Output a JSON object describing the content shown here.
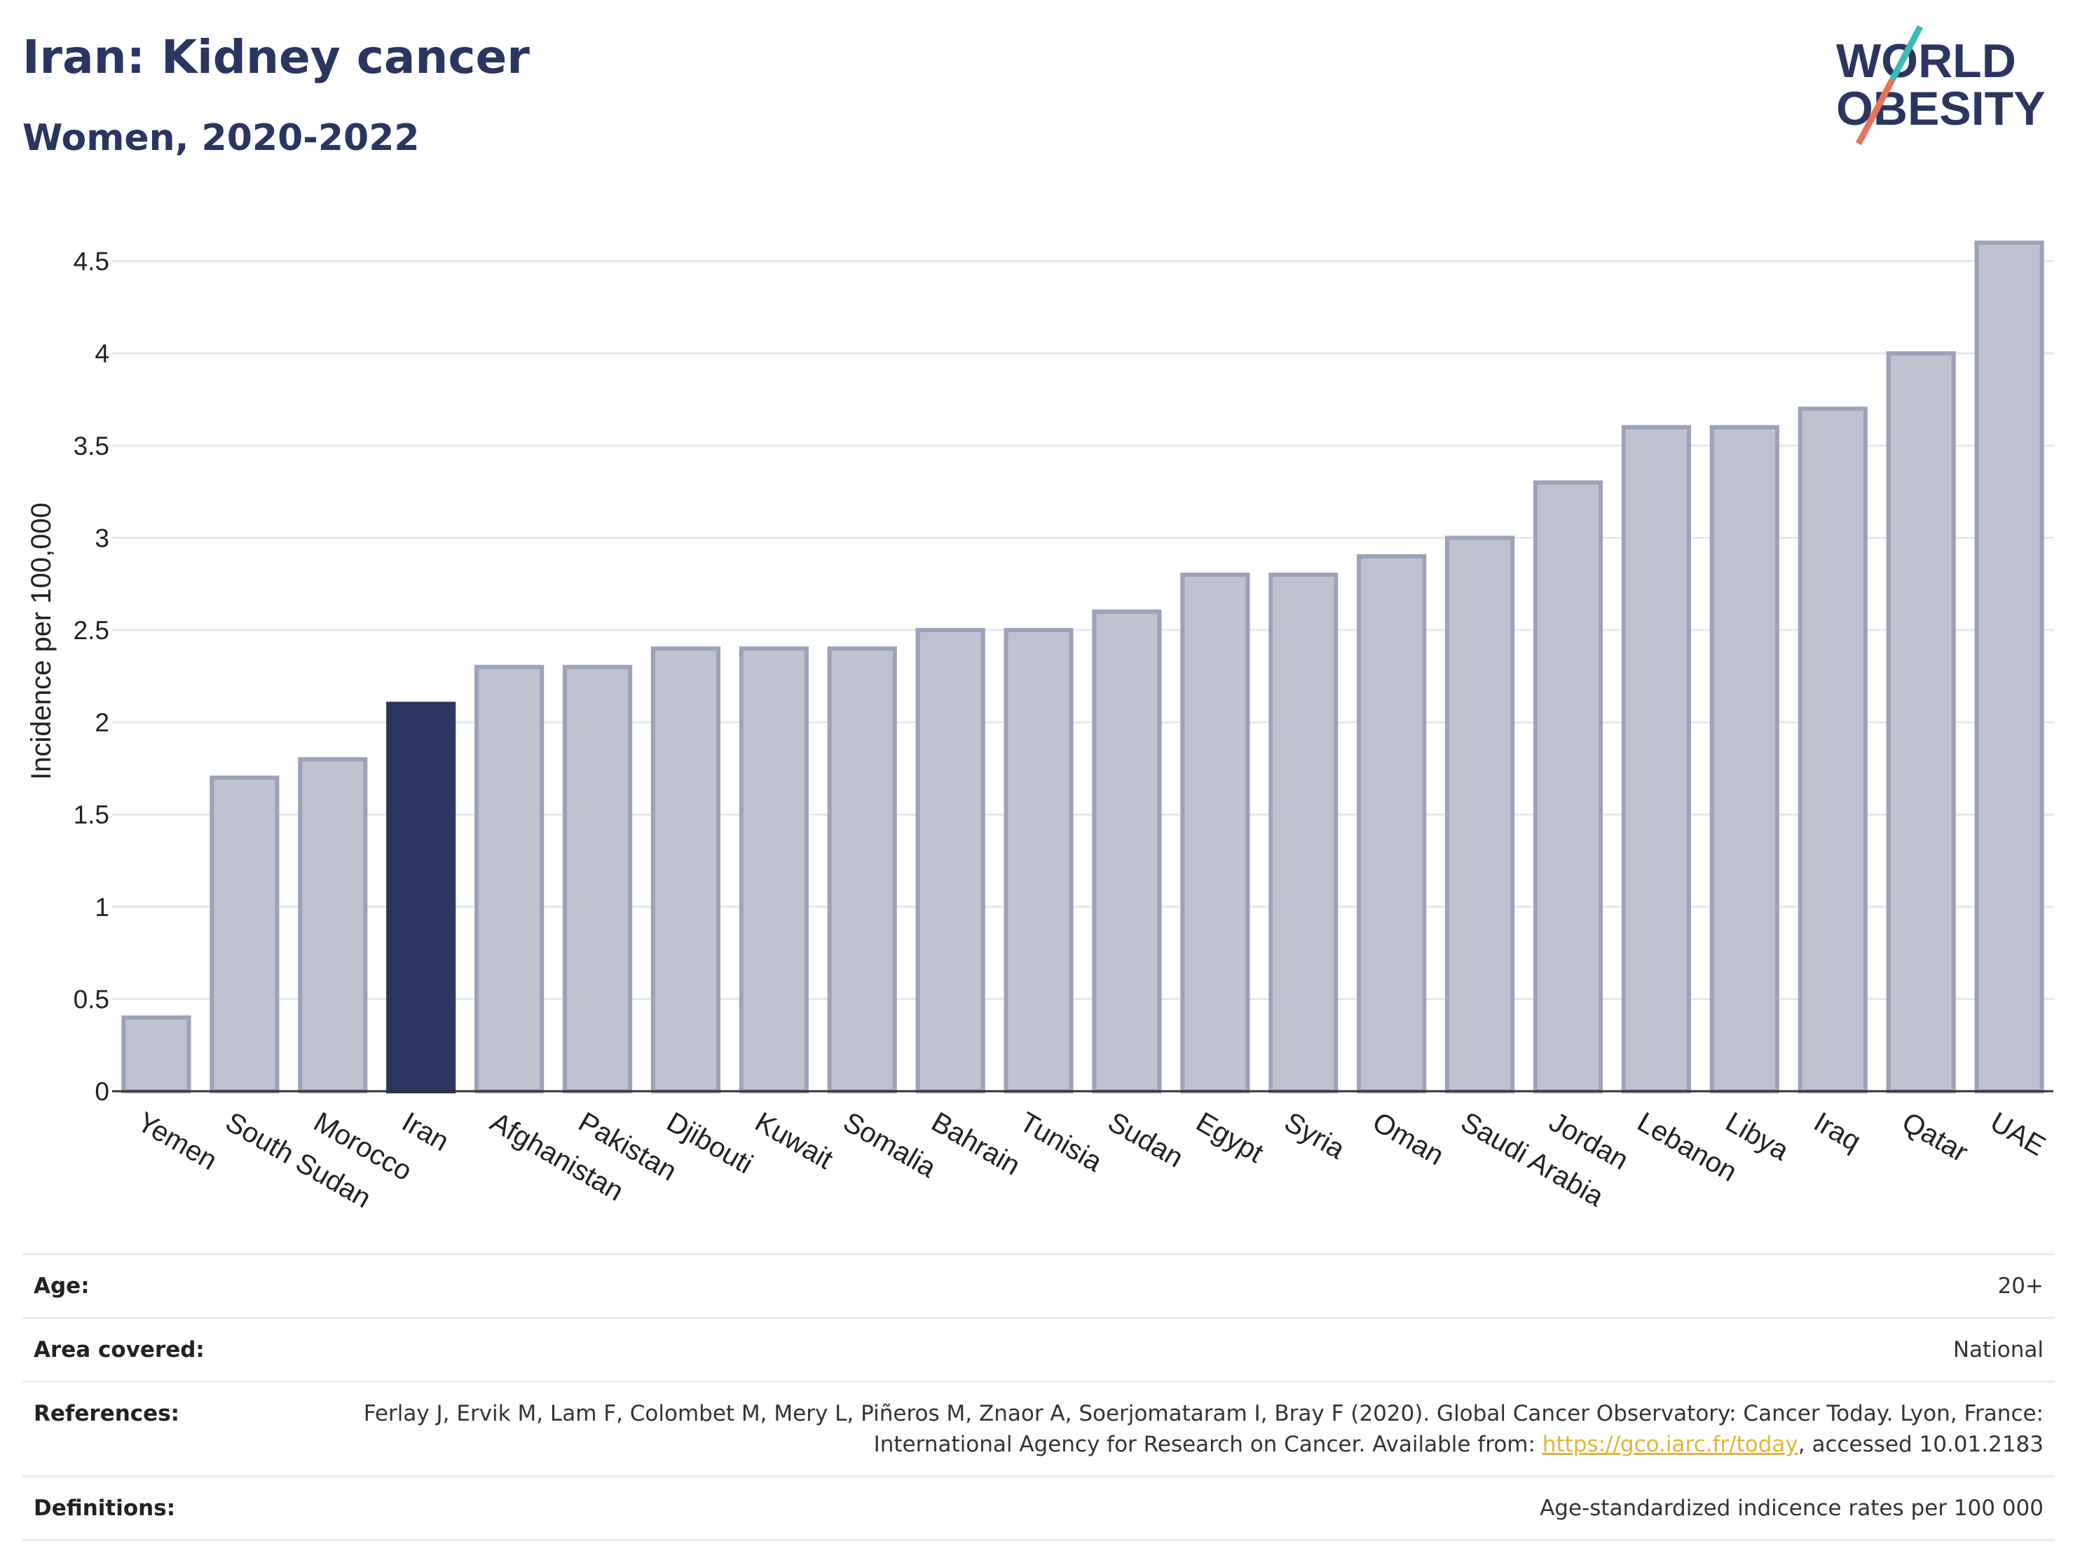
{
  "header": {
    "title": "Iran: Kidney cancer",
    "subtitle": "Women, 2020-2022"
  },
  "logo": {
    "line1": "WORLD",
    "line2": "OBESITY",
    "colors": {
      "text": "#2a3560",
      "slash_teal": "#3cbcb4",
      "slash_coral": "#e8735c"
    }
  },
  "chart_data": {
    "type": "bar",
    "title": "",
    "xlabel": "",
    "ylabel": "Incidence per 100,000",
    "ylim": [
      0,
      4.7
    ],
    "yticks": [
      0,
      0.5,
      1,
      1.5,
      2,
      2.5,
      3,
      3.5,
      4,
      4.5
    ],
    "ytick_labels": [
      "0",
      "0.5",
      "1",
      "1.5",
      "2",
      "2.5",
      "3",
      "3.5",
      "4",
      "4.5"
    ],
    "grid": true,
    "highlight": "Iran",
    "categories": [
      "Yemen",
      "South Sudan",
      "Morocco",
      "Iran",
      "Afghanistan",
      "Pakistan",
      "Djibouti",
      "Kuwait",
      "Somalia",
      "Bahrain",
      "Tunisia",
      "Sudan",
      "Egypt",
      "Syria",
      "Oman",
      "Saudi Arabia",
      "Jordan",
      "Lebanon",
      "Libya",
      "Iraq",
      "Qatar",
      "UAE"
    ],
    "values": [
      0.4,
      1.7,
      1.8,
      2.1,
      2.3,
      2.3,
      2.4,
      2.4,
      2.4,
      2.5,
      2.5,
      2.6,
      2.8,
      2.8,
      2.9,
      3.0,
      3.3,
      3.6,
      3.6,
      3.7,
      4.0,
      4.6
    ],
    "colors": {
      "bar": "#bfc2d1",
      "bar_border": "#9da2b9",
      "highlight": "#2a3560",
      "grid": "#e6e8ee",
      "axis": "#333333"
    }
  },
  "info": [
    {
      "label": "Age:",
      "value": "20+"
    },
    {
      "label": "Area covered:",
      "value": "National"
    },
    {
      "label": "References:",
      "value_parts": {
        "before": "Ferlay J, Ervik M, Lam F, Colombet M, Mery L, Piñeros M, Znaor A, Soerjomataram I, Bray F (2020). Global Cancer Observatory: Cancer Today. Lyon, France: International Agency for Research on Cancer. Available from: ",
        "link": "https://gco.iarc.fr/today",
        "after": ", accessed 10.01.2183"
      }
    },
    {
      "label": "Definitions:",
      "value": "Age-standardized indicence rates per 100 000"
    }
  ]
}
